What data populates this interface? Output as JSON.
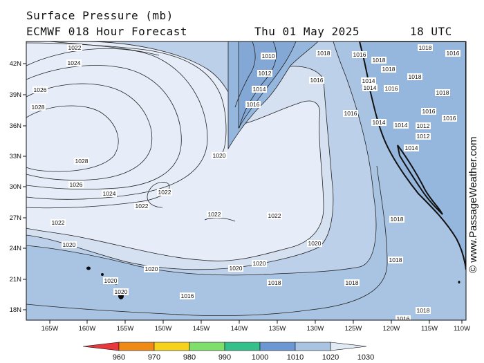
{
  "header": {
    "title": "Surface Pressure (mb)",
    "model": "ECMWF 018 Hour Forecast",
    "date": "Thu 01 May 2025",
    "time": "18 UTC"
  },
  "credit": "© www.PassageWeather.com",
  "map": {
    "lon_labels": [
      "165W",
      "160W",
      "155W",
      "150W",
      "145W",
      "140W",
      "135W",
      "130W",
      "125W",
      "120W",
      "115W",
      "110W"
    ],
    "lat_labels": [
      "42N",
      "39N",
      "36N",
      "33N",
      "30N",
      "27N",
      "24N",
      "21N",
      "18N"
    ],
    "isobars": [
      "1010",
      "1012",
      "1014",
      "1016",
      "1018",
      "1020",
      "1022",
      "1024",
      "1026",
      "1028"
    ],
    "contour_labels": [
      {
        "t": "1022",
        "k": "a"
      },
      {
        "t": "1024",
        "k": "b"
      },
      {
        "t": "1026",
        "k": "c"
      },
      {
        "t": "1028",
        "k": "d"
      },
      {
        "t": "1028",
        "k": "e"
      },
      {
        "t": "1026",
        "k": "f"
      },
      {
        "t": "1024",
        "k": "g"
      },
      {
        "t": "1022",
        "k": "h"
      },
      {
        "t": "1022",
        "k": "i"
      },
      {
        "t": "1022",
        "k": "j"
      },
      {
        "t": "1022",
        "k": "k"
      },
      {
        "t": "1022",
        "k": "l"
      },
      {
        "t": "1020",
        "k": "m"
      },
      {
        "t": "1020",
        "k": "n"
      },
      {
        "t": "1020",
        "k": "o"
      },
      {
        "t": "1020",
        "k": "p"
      },
      {
        "t": "1020",
        "k": "q"
      },
      {
        "t": "1020",
        "k": "r"
      },
      {
        "t": "1020",
        "k": "s"
      },
      {
        "t": "1020",
        "k": "t"
      },
      {
        "t": "1018",
        "k": "u"
      },
      {
        "t": "1018",
        "k": "v"
      },
      {
        "t": "1018",
        "k": "w"
      },
      {
        "t": "1018",
        "k": "x"
      },
      {
        "t": "1018",
        "k": "y"
      },
      {
        "t": "1016",
        "k": "z"
      },
      {
        "t": "1016",
        "k": "aa"
      },
      {
        "t": "1016",
        "k": "ab"
      },
      {
        "t": "1016",
        "k": "ac"
      },
      {
        "t": "1014",
        "k": "ad"
      },
      {
        "t": "1012",
        "k": "ae"
      },
      {
        "t": "1010",
        "k": "af"
      },
      {
        "t": "1018",
        "k": "ag"
      },
      {
        "t": "1014",
        "k": "ah"
      },
      {
        "t": "1014",
        "k": "ai"
      },
      {
        "t": "1016",
        "k": "aj"
      },
      {
        "t": "1018",
        "k": "ak"
      },
      {
        "t": "1018",
        "k": "al"
      },
      {
        "t": "1016",
        "k": "am"
      },
      {
        "t": "1014",
        "k": "an"
      },
      {
        "t": "1012",
        "k": "ao"
      },
      {
        "t": "1014",
        "k": "ap"
      },
      {
        "t": "1016",
        "k": "aq"
      },
      {
        "t": "1018",
        "k": "ar"
      },
      {
        "t": "1018",
        "k": "as"
      },
      {
        "t": "1016",
        "k": "at"
      },
      {
        "t": "1014",
        "k": "au"
      },
      {
        "t": "1012",
        "k": "av"
      },
      {
        "t": "1016",
        "k": "aw"
      },
      {
        "t": "1018",
        "k": "ax"
      },
      {
        "t": "1016",
        "k": "ay"
      }
    ]
  },
  "legend": {
    "ticks": [
      "960",
      "970",
      "980",
      "990",
      "1000",
      "1010",
      "1020",
      "1030"
    ],
    "colors": [
      "#e8383c",
      "#f08a14",
      "#f6d21c",
      "#7ee06a",
      "#34c08a",
      "#6b97d3",
      "#a9c3e2",
      "#e2eaf6"
    ]
  }
}
